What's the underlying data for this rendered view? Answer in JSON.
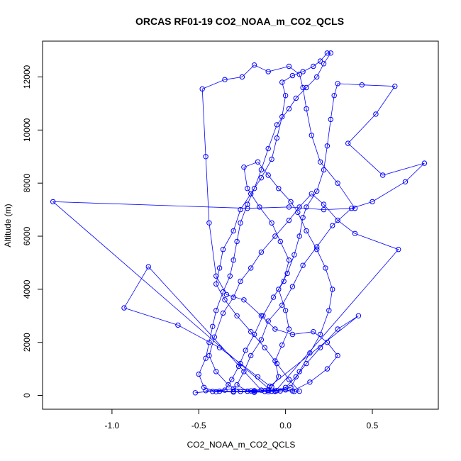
{
  "chart_data": {
    "type": "scatter",
    "title": "ORCAS RF01-19 CO2_NOAA_m_CO2_QCLS",
    "xlabel": "CO2_NOAA_m_CO2_QCLS",
    "ylabel": "Altitude (m)",
    "xlim": [
      -1.4,
      0.88
    ],
    "ylim": [
      -520,
      13350
    ],
    "x_ticks": [
      -1.0,
      -0.5,
      0.0,
      0.5
    ],
    "x_tick_labels": [
      "-1.0",
      "-0.5",
      "0.0",
      "0.5"
    ],
    "y_ticks": [
      0,
      2000,
      4000,
      6000,
      8000,
      10000,
      12000
    ],
    "y_tick_labels": [
      "0",
      "2000",
      "4000",
      "6000",
      "8000",
      "10000",
      "12000"
    ],
    "grid": false,
    "legend": "none",
    "marker": "open-circle",
    "connected": true,
    "color": "#0000ff",
    "series": [
      {
        "points": [
          [
            -0.52,
            100
          ],
          [
            -0.3,
            250
          ],
          [
            -0.18,
            180
          ],
          [
            -0.08,
            320
          ],
          [
            -0.04,
            700
          ],
          [
            -0.06,
            1300
          ],
          [
            -0.02,
            1900
          ],
          [
            0.02,
            2500
          ],
          [
            0.0,
            3200
          ],
          [
            -0.04,
            4000
          ],
          [
            0.01,
            4600
          ],
          [
            0.05,
            5300
          ],
          [
            0.08,
            6000
          ],
          [
            0.1,
            6700
          ],
          [
            0.12,
            7100
          ],
          [
            0.18,
            7700
          ],
          [
            0.22,
            8500
          ],
          [
            0.24,
            9400
          ],
          [
            0.26,
            10400
          ],
          [
            0.28,
            11300
          ],
          [
            0.3,
            11750
          ],
          [
            0.44,
            11700
          ],
          [
            0.63,
            11650
          ],
          [
            0.52,
            10600
          ],
          [
            0.36,
            9500
          ],
          [
            0.56,
            8300
          ],
          [
            0.8,
            8750
          ],
          [
            0.69,
            8050
          ],
          [
            0.5,
            7300
          ],
          [
            0.38,
            7050
          ],
          [
            0.27,
            6400
          ],
          [
            0.18,
            5600
          ],
          [
            0.1,
            4900
          ],
          [
            0.04,
            4100
          ],
          [
            -0.02,
            3400
          ],
          [
            -0.1,
            2800
          ],
          [
            -0.14,
            2100
          ],
          [
            -0.2,
            1500
          ],
          [
            -0.24,
            900
          ],
          [
            -0.28,
            400
          ],
          [
            -0.22,
            160
          ],
          [
            -0.12,
            150
          ],
          [
            -0.05,
            180
          ],
          [
            0.03,
            300
          ],
          [
            0.08,
            900
          ],
          [
            0.14,
            1600
          ],
          [
            0.2,
            2300
          ],
          [
            0.25,
            3200
          ],
          [
            0.27,
            4000
          ],
          [
            0.23,
            4800
          ],
          [
            0.18,
            5500
          ],
          [
            0.12,
            6200
          ],
          [
            0.07,
            6900
          ],
          [
            0.03,
            7300
          ],
          [
            -0.04,
            7800
          ],
          [
            -0.1,
            8300
          ],
          [
            -0.16,
            8800
          ],
          [
            -0.24,
            8600
          ],
          [
            -0.22,
            7800
          ],
          [
            -0.15,
            7100
          ],
          [
            -0.08,
            6500
          ],
          [
            -0.03,
            5800
          ],
          [
            0.02,
            5100
          ],
          [
            -0.01,
            4300
          ],
          [
            -0.07,
            3700
          ],
          [
            -0.13,
            3000
          ],
          [
            -0.18,
            2300
          ],
          [
            -0.23,
            1700
          ],
          [
            -0.27,
            1100
          ],
          [
            -0.31,
            600
          ],
          [
            -0.35,
            200
          ],
          [
            -0.42,
            150
          ],
          [
            -0.46,
            180
          ],
          [
            -0.38,
            160
          ],
          [
            -0.3,
            150
          ],
          [
            -0.2,
            170
          ],
          [
            -0.1,
            190
          ],
          [
            0.0,
            210
          ],
          [
            0.05,
            150
          ],
          [
            0.08,
            160
          ],
          [
            0.02,
            600
          ],
          [
            -0.05,
            1200
          ],
          [
            -0.12,
            1800
          ],
          [
            -0.2,
            2400
          ],
          [
            -0.28,
            3000
          ],
          [
            -0.35,
            3600
          ],
          [
            -0.4,
            4200
          ],
          [
            -0.38,
            4800
          ],
          [
            -0.36,
            5500
          ],
          [
            -0.3,
            6200
          ],
          [
            -0.26,
            7000
          ],
          [
            -0.2,
            7600
          ],
          [
            -0.14,
            8200
          ],
          [
            -0.08,
            8900
          ],
          [
            -0.05,
            9700
          ],
          [
            -0.02,
            10500
          ],
          [
            0.0,
            11300
          ],
          [
            -0.02,
            11800
          ],
          [
            0.04,
            12050
          ],
          [
            0.1,
            12200
          ],
          [
            0.16,
            12400
          ],
          [
            0.2,
            12600
          ],
          [
            0.24,
            12900
          ],
          [
            0.26,
            12900
          ],
          [
            0.22,
            12500
          ],
          [
            0.18,
            12000
          ],
          [
            0.12,
            11600
          ],
          [
            0.06,
            11200
          ],
          [
            0.02,
            10800
          ],
          [
            -0.05,
            10200
          ],
          [
            -0.1,
            9300
          ],
          [
            -0.14,
            8500
          ],
          [
            -0.18,
            7800
          ],
          [
            -0.22,
            7200
          ],
          [
            -0.26,
            6500
          ],
          [
            -0.28,
            5800
          ],
          [
            -0.3,
            5100
          ],
          [
            -0.32,
            4500
          ],
          [
            -0.36,
            3900
          ],
          [
            -0.4,
            3200
          ],
          [
            -0.42,
            2600
          ],
          [
            -0.44,
            2000
          ],
          [
            -0.46,
            1400
          ],
          [
            -0.5,
            800
          ],
          [
            -0.47,
            300
          ],
          [
            -0.4,
            140
          ],
          [
            -0.3,
            130
          ],
          [
            -0.18,
            140
          ],
          [
            -0.08,
            160
          ],
          [
            -1.34,
            7300
          ],
          [
            -0.22,
            7050
          ],
          [
            0.02,
            7100
          ],
          [
            0.22,
            7000
          ],
          [
            0.4,
            7050
          ],
          [
            0.3,
            8000
          ],
          [
            0.2,
            8800
          ],
          [
            0.15,
            9800
          ],
          [
            0.12,
            10800
          ],
          [
            0.1,
            11600
          ],
          [
            0.08,
            12100
          ],
          [
            0.02,
            12400
          ],
          [
            -0.1,
            12200
          ],
          [
            -0.18,
            12450
          ],
          [
            -0.25,
            12000
          ],
          [
            -0.35,
            11900
          ],
          [
            -0.48,
            11550
          ],
          [
            -0.46,
            9000
          ],
          [
            -0.44,
            6500
          ],
          [
            -0.4,
            4500
          ],
          [
            -0.34,
            3800
          ],
          [
            -0.24,
            3600
          ],
          [
            -0.14,
            3000
          ],
          [
            -0.06,
            2500
          ],
          [
            0.04,
            2300
          ],
          [
            0.16,
            2400
          ],
          [
            0.24,
            2000
          ],
          [
            0.3,
            1500
          ],
          [
            0.24,
            1000
          ],
          [
            0.14,
            500
          ],
          [
            0.04,
            170
          ],
          [
            -0.06,
            170
          ],
          [
            -0.14,
            200
          ],
          [
            -0.79,
            4850
          ],
          [
            -0.93,
            3300
          ],
          [
            -0.62,
            2650
          ],
          [
            -0.38,
            1800
          ],
          [
            -0.26,
            1200
          ],
          [
            -0.16,
            700
          ],
          [
            -0.09,
            350
          ],
          [
            0.42,
            3000
          ],
          [
            0.3,
            2500
          ],
          [
            0.2,
            1800
          ],
          [
            0.12,
            1200
          ],
          [
            0.06,
            700
          ],
          [
            0.0,
            300
          ],
          [
            -0.06,
            150
          ],
          [
            0.65,
            5500
          ],
          [
            0.4,
            6100
          ],
          [
            0.3,
            6600
          ],
          [
            0.22,
            7200
          ],
          [
            0.15,
            7600
          ],
          [
            0.08,
            7100
          ],
          [
            0.02,
            6600
          ],
          [
            -0.06,
            6000
          ],
          [
            -0.14,
            5400
          ],
          [
            -0.2,
            4800
          ],
          [
            -0.26,
            4300
          ],
          [
            -0.3,
            3700
          ],
          [
            -0.36,
            3100
          ],
          [
            -0.41,
            2200
          ],
          [
            -0.44,
            1500
          ],
          [
            -0.4,
            900
          ],
          [
            -0.33,
            400
          ],
          [
            -0.26,
            150
          ],
          [
            -0.18,
            120
          ],
          [
            -0.1,
            140
          ],
          [
            -0.03,
            170
          ]
        ]
      }
    ]
  }
}
